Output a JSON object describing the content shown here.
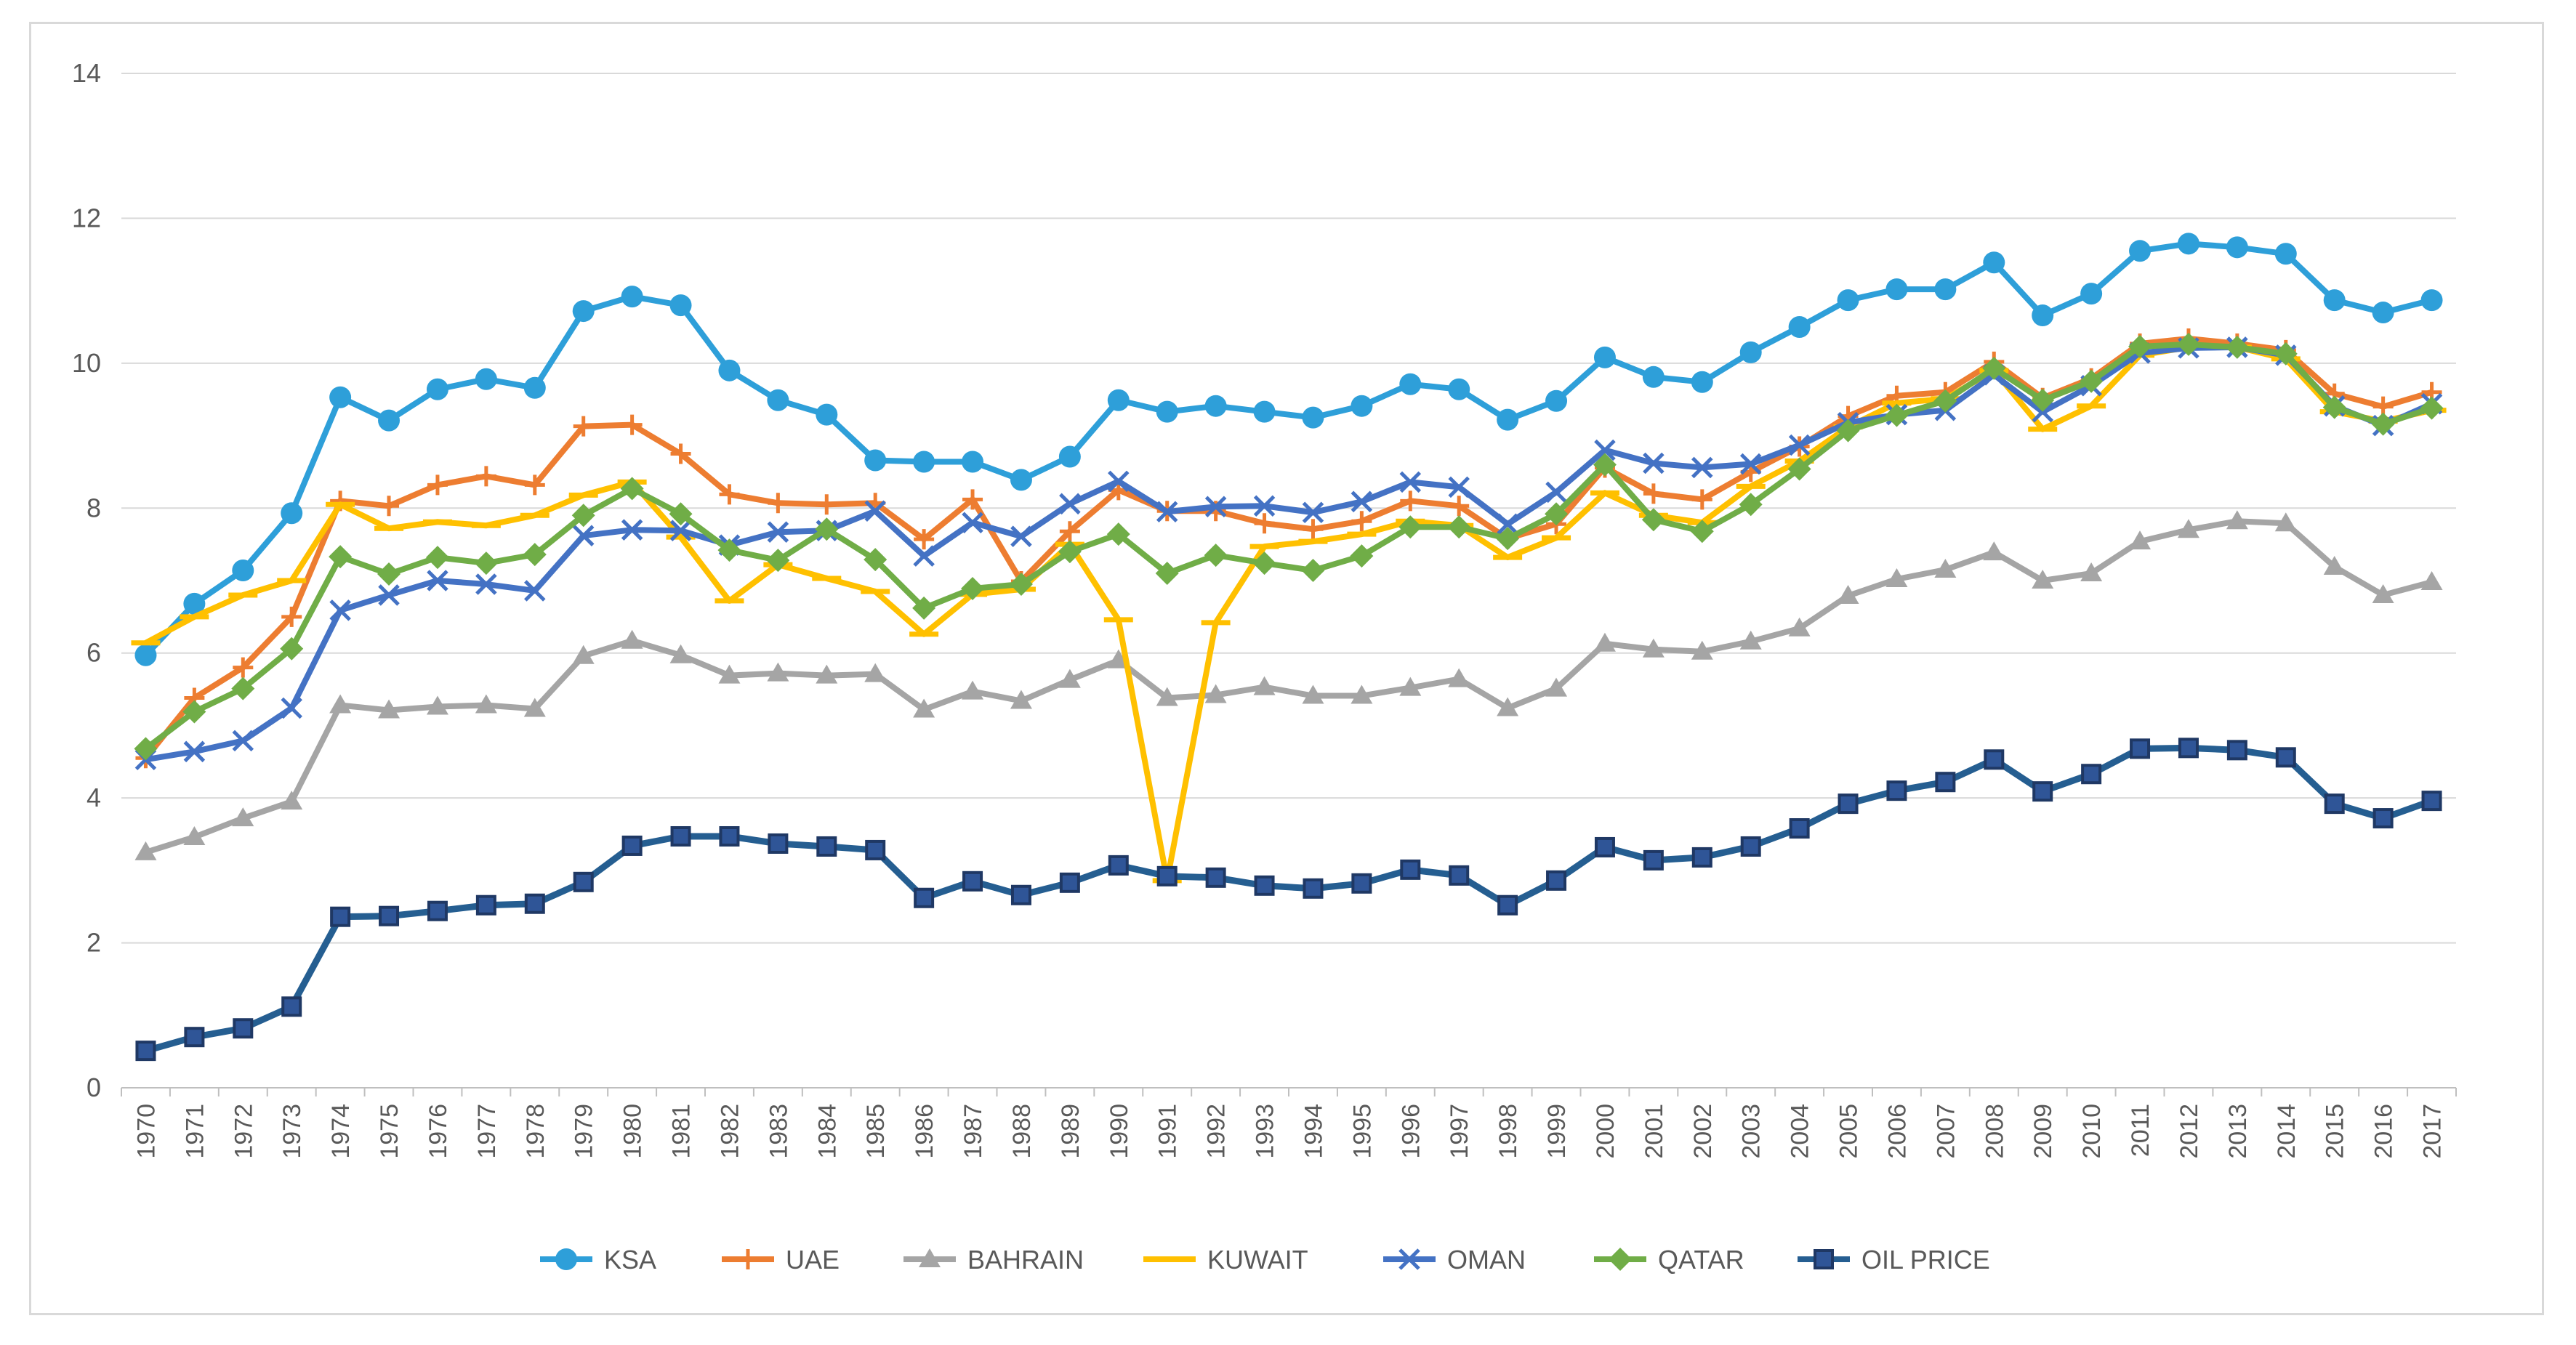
{
  "chart_data": {
    "type": "line",
    "title": "",
    "xlabel": "",
    "ylabel": "",
    "ylim": [
      0,
      14
    ],
    "yticks": [
      0,
      2,
      4,
      6,
      8,
      10,
      12,
      14
    ],
    "grid": true,
    "legend_position": "bottom",
    "x": [
      "1970",
      "1971",
      "1972",
      "1973",
      "1974",
      "1975",
      "1976",
      "1977",
      "1978",
      "1979",
      "1980",
      "1981",
      "1982",
      "1983",
      "1984",
      "1985",
      "1986",
      "1987",
      "1988",
      "1989",
      "1990",
      "1991",
      "1992",
      "1993",
      "1994",
      "1995",
      "1996",
      "1997",
      "1998",
      "1999",
      "2000",
      "2001",
      "2002",
      "2003",
      "2004",
      "2005",
      "2006",
      "2007",
      "2008",
      "2009",
      "2010",
      "2011",
      "2012",
      "2013",
      "2014",
      "2015",
      "2016",
      "2017"
    ],
    "series": [
      {
        "name": "KSA",
        "color": "#2e9fd9",
        "marker": "circle",
        "values": [
          5.97,
          6.68,
          7.14,
          7.93,
          9.53,
          9.21,
          9.64,
          9.78,
          9.66,
          10.72,
          10.92,
          10.8,
          9.9,
          9.49,
          9.29,
          8.66,
          8.64,
          8.64,
          8.39,
          8.71,
          9.49,
          9.33,
          9.41,
          9.33,
          9.25,
          9.41,
          9.71,
          9.64,
          9.22,
          9.48,
          10.08,
          9.81,
          9.74,
          10.15,
          10.5,
          10.87,
          11.02,
          11.02,
          11.39,
          10.66,
          10.96,
          11.55,
          11.65,
          11.6,
          11.51,
          10.87,
          10.7,
          10.87
        ]
      },
      {
        "name": "UAE",
        "color": "#ed7d31",
        "marker": "plus",
        "values": [
          4.55,
          5.38,
          5.8,
          6.5,
          8.1,
          8.03,
          8.32,
          8.44,
          8.32,
          9.13,
          9.15,
          8.75,
          8.19,
          8.07,
          8.05,
          8.07,
          7.57,
          8.12,
          6.99,
          7.68,
          8.25,
          7.96,
          7.96,
          7.79,
          7.71,
          7.82,
          8.1,
          8.03,
          7.58,
          7.78,
          8.56,
          8.2,
          8.12,
          8.5,
          8.85,
          9.27,
          9.55,
          9.6,
          10.02,
          9.52,
          9.79,
          10.27,
          10.34,
          10.27,
          10.18,
          9.58,
          9.4,
          9.6
        ]
      },
      {
        "name": "BAHRAIN",
        "color": "#a5a5a5",
        "marker": "triangle",
        "values": [
          3.25,
          3.46,
          3.72,
          3.95,
          5.28,
          5.21,
          5.26,
          5.28,
          5.23,
          5.96,
          6.17,
          5.97,
          5.69,
          5.72,
          5.69,
          5.71,
          5.22,
          5.47,
          5.34,
          5.63,
          5.9,
          5.38,
          5.42,
          5.53,
          5.41,
          5.41,
          5.52,
          5.64,
          5.24,
          5.51,
          6.13,
          6.05,
          6.02,
          6.16,
          6.34,
          6.79,
          7.02,
          7.15,
          7.39,
          7.0,
          7.1,
          7.54,
          7.7,
          7.82,
          7.79,
          7.19,
          6.8,
          6.98
        ]
      },
      {
        "name": "KUWAIT",
        "color": "#ffc000",
        "marker": "dash",
        "values": [
          6.14,
          6.5,
          6.8,
          7.0,
          8.05,
          7.72,
          7.81,
          7.76,
          7.9,
          8.18,
          8.36,
          7.6,
          6.72,
          7.22,
          7.03,
          6.85,
          6.26,
          6.81,
          6.88,
          7.5,
          6.46,
          2.86,
          6.42,
          7.47,
          7.54,
          7.64,
          7.82,
          7.76,
          7.32,
          7.59,
          8.21,
          7.9,
          7.8,
          8.3,
          8.65,
          9.12,
          9.45,
          9.51,
          9.9,
          9.09,
          9.41,
          10.11,
          10.22,
          10.22,
          10.06,
          9.33,
          9.2,
          9.35
        ]
      },
      {
        "name": "OMAN",
        "color": "#4472c4",
        "marker": "x",
        "values": [
          4.53,
          4.64,
          4.79,
          5.24,
          6.59,
          6.8,
          7.0,
          6.95,
          6.86,
          7.62,
          7.7,
          7.69,
          7.49,
          7.67,
          7.69,
          7.96,
          7.34,
          7.8,
          7.61,
          8.06,
          8.37,
          7.95,
          8.02,
          8.03,
          7.94,
          8.09,
          8.36,
          8.29,
          7.78,
          8.22,
          8.8,
          8.62,
          8.56,
          8.61,
          8.87,
          9.18,
          9.29,
          9.35,
          9.84,
          9.33,
          9.69,
          10.14,
          10.21,
          10.22,
          10.11,
          9.41,
          9.14,
          9.44
        ]
      },
      {
        "name": "QATAR",
        "color": "#70ad47",
        "marker": "diamond",
        "values": [
          4.68,
          5.19,
          5.51,
          6.06,
          7.33,
          7.09,
          7.32,
          7.24,
          7.36,
          7.9,
          8.27,
          7.92,
          7.42,
          7.28,
          7.71,
          7.29,
          6.62,
          6.89,
          6.95,
          7.4,
          7.64,
          7.1,
          7.35,
          7.24,
          7.14,
          7.34,
          7.74,
          7.74,
          7.58,
          7.92,
          8.6,
          7.84,
          7.68,
          8.05,
          8.54,
          9.07,
          9.28,
          9.48,
          9.93,
          9.49,
          9.75,
          10.23,
          10.26,
          10.22,
          10.13,
          9.39,
          9.16,
          9.38
        ]
      },
      {
        "name": "OIL PRICE",
        "color": "#255e91",
        "marker": "square",
        "values": [
          0.51,
          0.7,
          0.82,
          1.12,
          2.36,
          2.37,
          2.44,
          2.52,
          2.54,
          2.84,
          3.34,
          3.47,
          3.47,
          3.37,
          3.33,
          3.28,
          2.62,
          2.85,
          2.66,
          2.83,
          3.07,
          2.92,
          2.9,
          2.79,
          2.75,
          2.82,
          3.01,
          2.93,
          2.52,
          2.86,
          3.32,
          3.14,
          3.18,
          3.33,
          3.58,
          3.92,
          4.1,
          4.22,
          4.53,
          4.09,
          4.33,
          4.68,
          4.69,
          4.66,
          4.56,
          3.92,
          3.72,
          3.96
        ]
      }
    ]
  }
}
